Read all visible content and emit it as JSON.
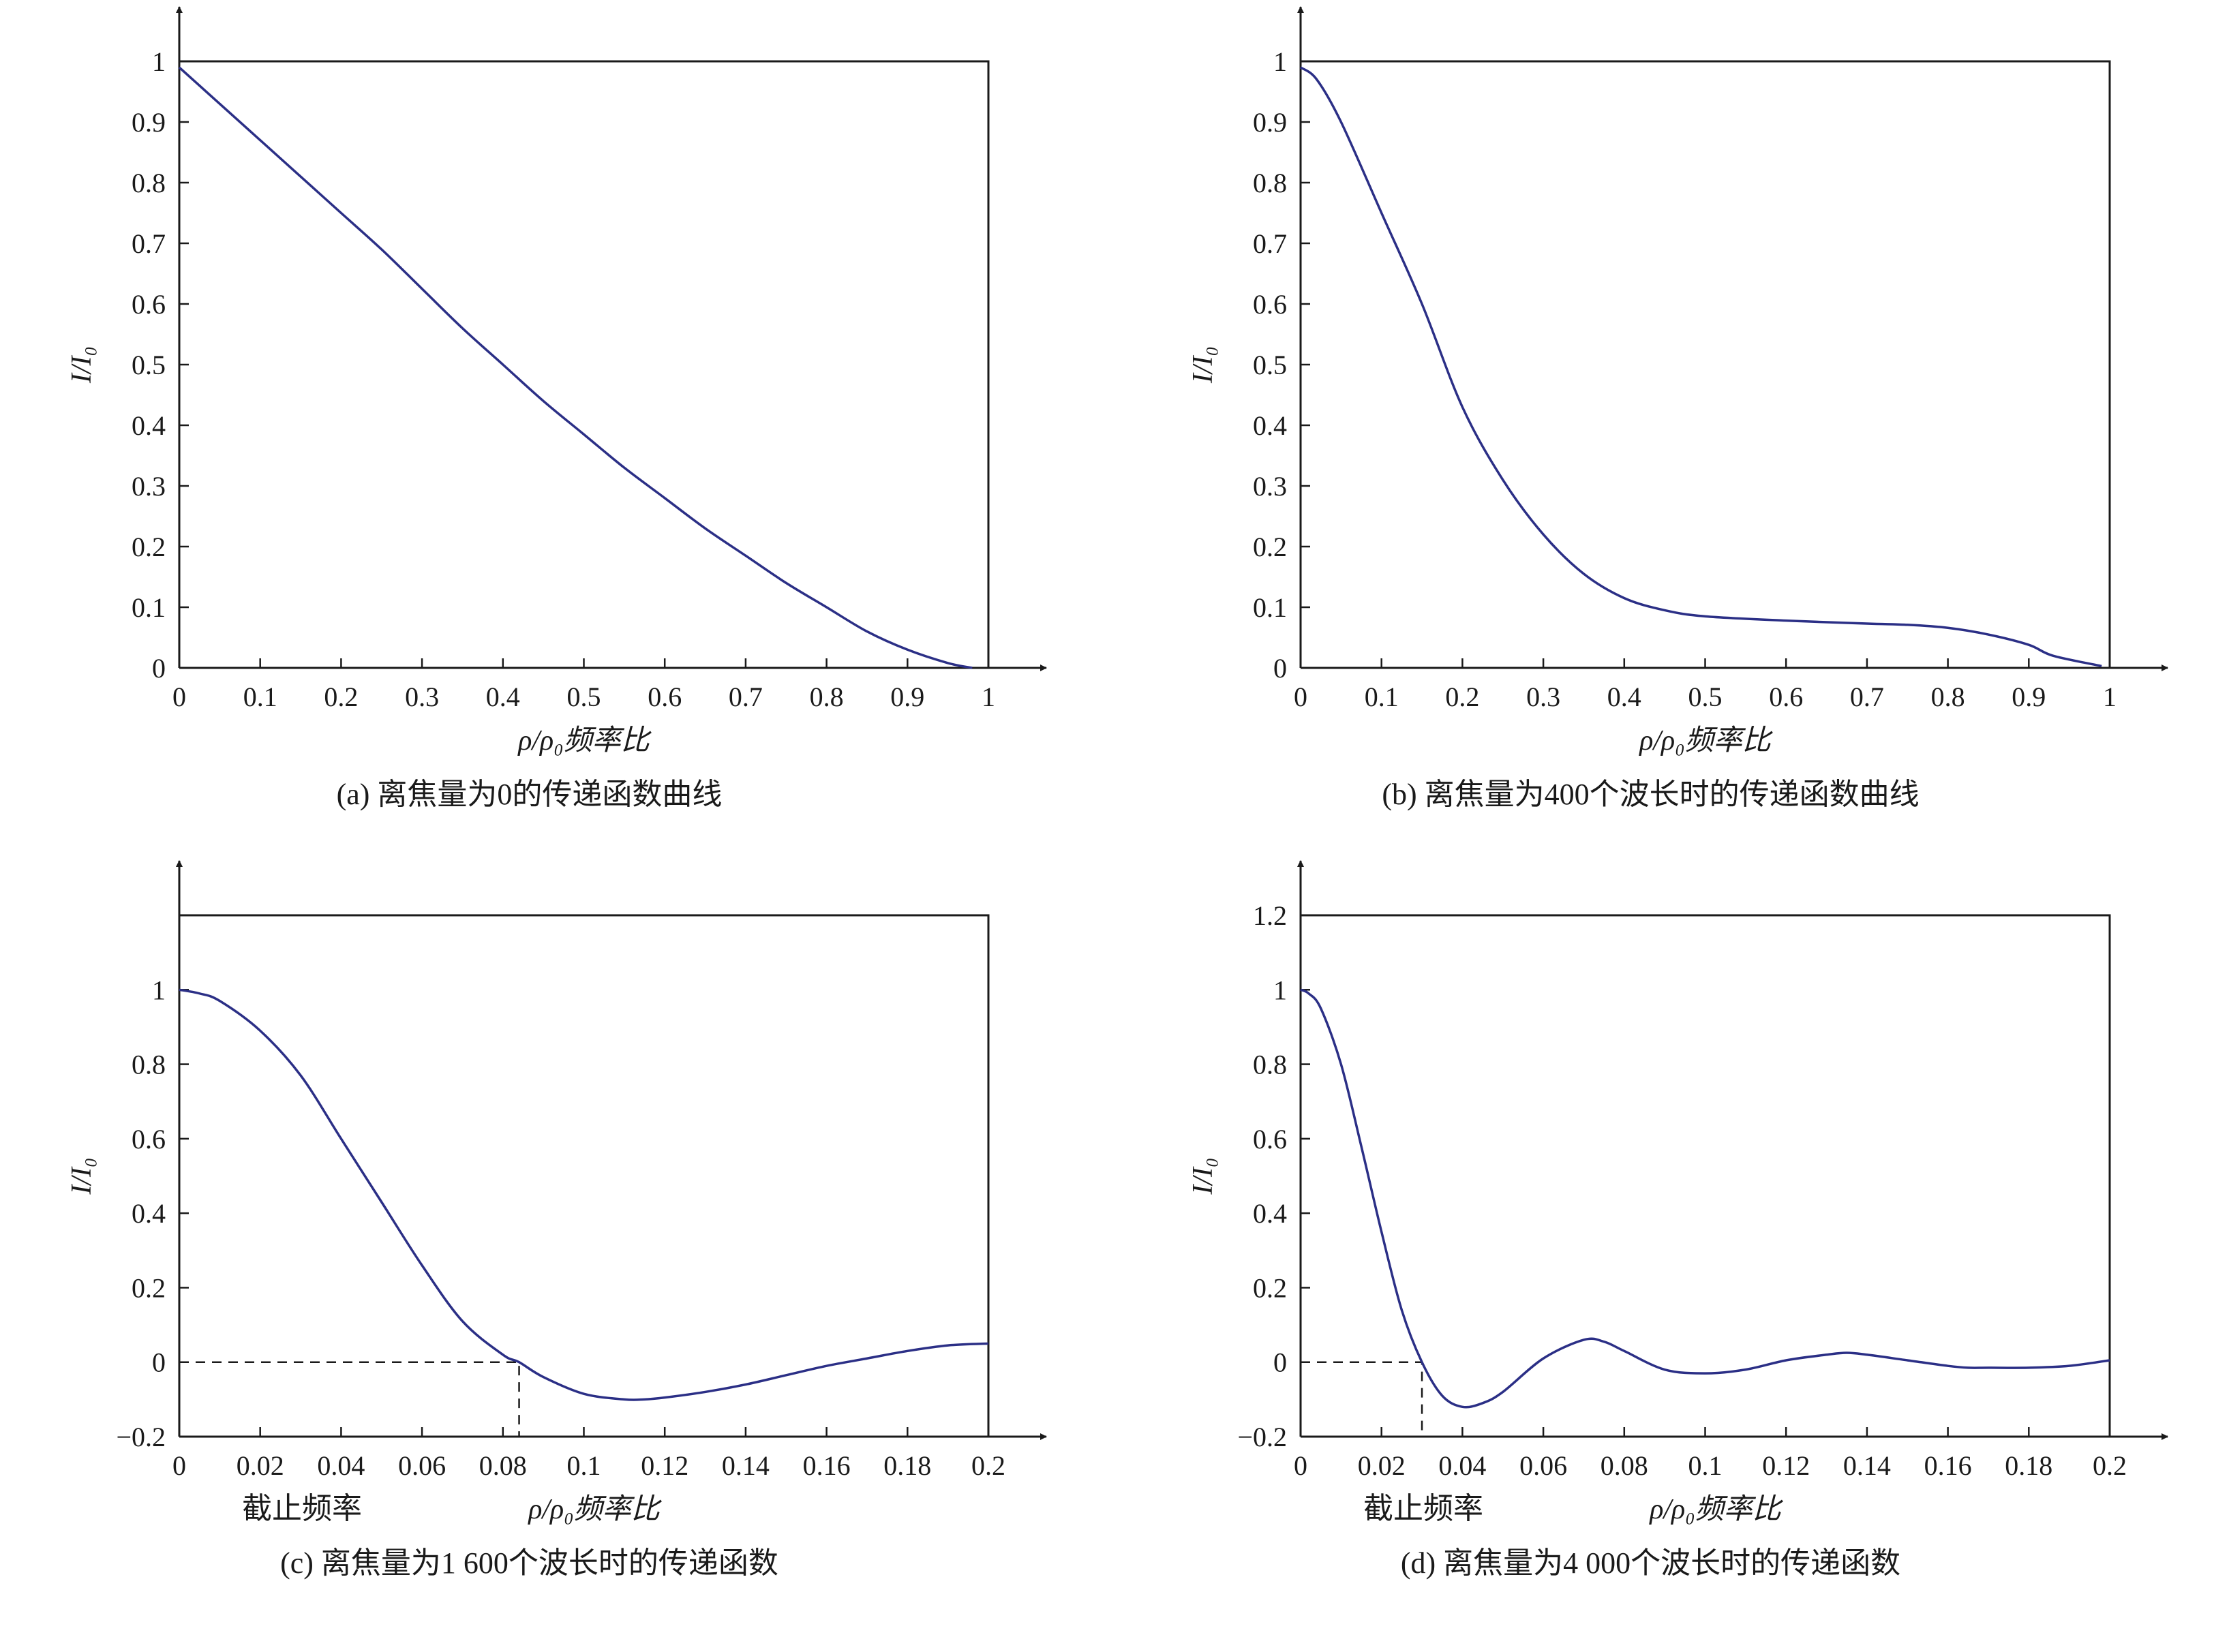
{
  "colors": {
    "curve": "#2b2f86",
    "axis": "#1a1a1a",
    "dashed": "#1a1a1a"
  },
  "chart_data": [
    {
      "id": "a",
      "type": "line",
      "caption": "(a) 离焦量为0的传递函数曲线",
      "xlabel": "ρ/ρ₀频率比",
      "ylabel": "I/I₀",
      "xlim": [
        0,
        1
      ],
      "ylim": [
        0,
        1
      ],
      "x_ticks": [
        "0",
        "0.1",
        "0.2",
        "0.3",
        "0.4",
        "0.5",
        "0.6",
        "0.7",
        "0.8",
        "0.9",
        "1"
      ],
      "y_ticks": [
        "0",
        "0.1",
        "0.2",
        "0.3",
        "0.4",
        "0.5",
        "0.6",
        "0.7",
        "0.8",
        "0.9",
        "1"
      ],
      "x_tick_values": [
        0,
        0.1,
        0.2,
        0.3,
        0.4,
        0.5,
        0.6,
        0.7,
        0.8,
        0.9,
        1
      ],
      "y_tick_values": [
        0,
        0.1,
        0.2,
        0.3,
        0.4,
        0.5,
        0.6,
        0.7,
        0.8,
        0.9,
        1
      ],
      "box_top": 1,
      "grid": false,
      "series": [
        {
          "x": [
            0,
            0.05,
            0.1,
            0.15,
            0.2,
            0.25,
            0.3,
            0.35,
            0.4,
            0.45,
            0.5,
            0.55,
            0.6,
            0.65,
            0.7,
            0.75,
            0.8,
            0.85,
            0.9,
            0.95,
            0.98
          ],
          "y": [
            0.99,
            0.93,
            0.87,
            0.81,
            0.75,
            0.69,
            0.625,
            0.56,
            0.5,
            0.44,
            0.385,
            0.33,
            0.28,
            0.23,
            0.185,
            0.14,
            0.1,
            0.06,
            0.03,
            0.008,
            0
          ]
        }
      ]
    },
    {
      "id": "b",
      "type": "line",
      "caption": "(b) 离焦量为400个波长时的传递函数曲线",
      "xlabel": "ρ/ρ₀频率比",
      "ylabel": "I/I₀",
      "xlim": [
        0,
        1
      ],
      "ylim": [
        0,
        1
      ],
      "x_ticks": [
        "0",
        "0.1",
        "0.2",
        "0.3",
        "0.4",
        "0.5",
        "0.6",
        "0.7",
        "0.8",
        "0.9",
        "1"
      ],
      "y_ticks": [
        "0",
        "0.1",
        "0.2",
        "0.3",
        "0.4",
        "0.5",
        "0.6",
        "0.7",
        "0.8",
        "0.9",
        "1"
      ],
      "x_tick_values": [
        0,
        0.1,
        0.2,
        0.3,
        0.4,
        0.5,
        0.6,
        0.7,
        0.8,
        0.9,
        1
      ],
      "y_tick_values": [
        0,
        0.1,
        0.2,
        0.3,
        0.4,
        0.5,
        0.6,
        0.7,
        0.8,
        0.9,
        1
      ],
      "box_top": 1,
      "grid": false,
      "series": [
        {
          "x": [
            0,
            0.02,
            0.05,
            0.1,
            0.15,
            0.2,
            0.25,
            0.3,
            0.35,
            0.4,
            0.45,
            0.5,
            0.6,
            0.7,
            0.75,
            0.8,
            0.85,
            0.9,
            0.93,
            0.99
          ],
          "y": [
            0.99,
            0.97,
            0.9,
            0.75,
            0.6,
            0.43,
            0.31,
            0.22,
            0.155,
            0.115,
            0.095,
            0.085,
            0.078,
            0.073,
            0.071,
            0.066,
            0.055,
            0.038,
            0.02,
            0.003
          ]
        }
      ]
    },
    {
      "id": "c",
      "type": "line",
      "caption": "(c) 离焦量为1 600个波长时的传递函数",
      "xlabel": "ρ/ρ₀频率比",
      "ylabel": "I/I₀",
      "annotation": "截止频率",
      "cutoff_x": 0.084,
      "xlim": [
        0,
        0.2
      ],
      "ylim": [
        -0.2,
        1.2
      ],
      "x_ticks": [
        "0",
        "0.02",
        "0.04",
        "0.06",
        "0.08",
        "0.1",
        "0.12",
        "0.14",
        "0.16",
        "0.18",
        "0.2"
      ],
      "y_ticks": [
        "−0.2",
        "0",
        "0.2",
        "0.4",
        "0.6",
        "0.8",
        "1"
      ],
      "x_tick_values": [
        0,
        0.02,
        0.04,
        0.06,
        0.08,
        0.1,
        0.12,
        0.14,
        0.16,
        0.18,
        0.2
      ],
      "y_tick_values": [
        -0.2,
        0,
        0.2,
        0.4,
        0.6,
        0.8,
        1
      ],
      "box_top": 1.2,
      "grid": false,
      "series": [
        {
          "x": [
            0,
            0.005,
            0.01,
            0.02,
            0.03,
            0.04,
            0.05,
            0.06,
            0.07,
            0.08,
            0.084,
            0.09,
            0.1,
            0.11,
            0.115,
            0.12,
            0.13,
            0.14,
            0.15,
            0.16,
            0.17,
            0.18,
            0.19,
            0.2
          ],
          "y": [
            1.0,
            0.99,
            0.97,
            0.89,
            0.77,
            0.6,
            0.43,
            0.26,
            0.11,
            0.02,
            0,
            -0.04,
            -0.085,
            -0.1,
            -0.1,
            -0.095,
            -0.08,
            -0.06,
            -0.035,
            -0.01,
            0.01,
            0.03,
            0.045,
            0.05
          ]
        }
      ]
    },
    {
      "id": "d",
      "type": "line",
      "caption": "(d) 离焦量为4 000个波长时的传递函数",
      "xlabel": "ρ/ρ₀频率比",
      "ylabel": "I/I₀",
      "annotation": "截止频率",
      "cutoff_x": 0.03,
      "xlim": [
        0,
        0.2
      ],
      "ylim": [
        -0.2,
        1.2
      ],
      "x_ticks": [
        "0",
        "0.02",
        "0.04",
        "0.06",
        "0.08",
        "0.1",
        "0.12",
        "0.14",
        "0.16",
        "0.18",
        "0.2"
      ],
      "y_ticks": [
        "−0.2",
        "0",
        "0.2",
        "0.4",
        "0.6",
        "0.8",
        "1",
        "1.2"
      ],
      "x_tick_values": [
        0,
        0.02,
        0.04,
        0.06,
        0.08,
        0.1,
        0.12,
        0.14,
        0.16,
        0.18,
        0.2
      ],
      "y_tick_values": [
        -0.2,
        0,
        0.2,
        0.4,
        0.6,
        0.8,
        1,
        1.2
      ],
      "box_top": 1.2,
      "grid": false,
      "series": [
        {
          "x": [
            0,
            0.002,
            0.005,
            0.01,
            0.015,
            0.02,
            0.025,
            0.03,
            0.035,
            0.04,
            0.045,
            0.05,
            0.06,
            0.07,
            0.075,
            0.08,
            0.09,
            0.1,
            0.11,
            0.12,
            0.13,
            0.135,
            0.14,
            0.15,
            0.16,
            0.165,
            0.17,
            0.18,
            0.19,
            0.2
          ],
          "y": [
            1.0,
            0.99,
            0.95,
            0.8,
            0.58,
            0.35,
            0.14,
            0,
            -0.09,
            -0.12,
            -0.11,
            -0.08,
            0.01,
            0.06,
            0.055,
            0.03,
            -0.02,
            -0.03,
            -0.02,
            0.005,
            0.02,
            0.025,
            0.02,
            0.005,
            -0.01,
            -0.015,
            -0.015,
            -0.015,
            -0.01,
            0.005
          ]
        }
      ]
    }
  ]
}
